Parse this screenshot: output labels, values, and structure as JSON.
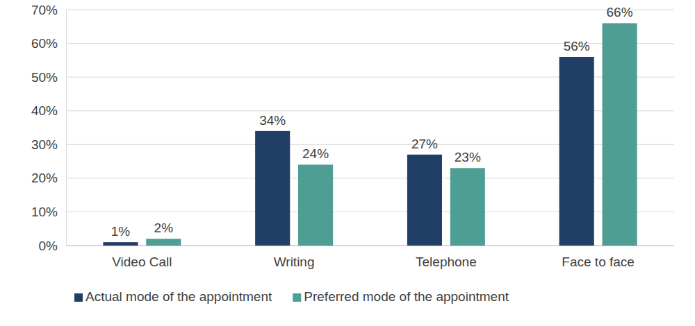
{
  "chart_data": {
    "type": "bar",
    "categories": [
      "Video Call",
      "Writing",
      "Telephone",
      "Face to face"
    ],
    "series": [
      {
        "name": "Actual mode of the appointment",
        "color": "#213f66",
        "values": [
          1,
          34,
          27,
          56
        ],
        "value_labels": [
          "1%",
          "34%",
          "27%",
          "56%"
        ]
      },
      {
        "name": "Preferred mode of the appointment",
        "color": "#4e9e94",
        "values": [
          2,
          24,
          23,
          66
        ],
        "value_labels": [
          "2%",
          "24%",
          "23%",
          "66%"
        ]
      }
    ],
    "ylim": [
      0,
      70
    ],
    "yticks": [
      {
        "value": 0,
        "label": "0%"
      },
      {
        "value": 10,
        "label": "10%"
      },
      {
        "value": 20,
        "label": "20%"
      },
      {
        "value": 30,
        "label": "30%"
      },
      {
        "value": 40,
        "label": "40%"
      },
      {
        "value": 50,
        "label": "50%"
      },
      {
        "value": 60,
        "label": "60%"
      },
      {
        "value": 70,
        "label": "70%"
      }
    ],
    "grid": true,
    "data_labels": true,
    "legend": "bottom"
  }
}
